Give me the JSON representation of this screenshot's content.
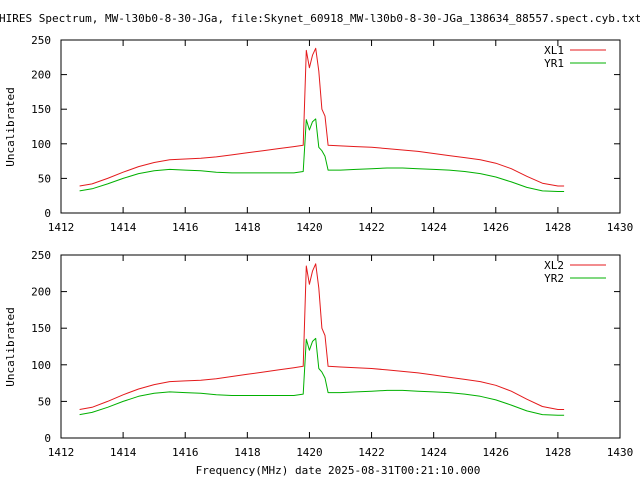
{
  "header": {
    "title": "HIRES Spectrum, MW-l30b0-8-30-JGa, file:Skynet_60918_MW-l30b0-8-30-JGa_138634_88557.spect.cyb.txt"
  },
  "footer": {
    "xlabel": "Frequency(MHz) date 2025-08-31T00:21:10.000"
  },
  "colors": {
    "red": "#e41a1c",
    "green": "#00b000",
    "axis": "#000000",
    "background": "#ffffff"
  },
  "chart_data": [
    {
      "type": "line",
      "title": "HIRES Spectrum, MW-l30b0-8-30-JGa, file:Skynet_60918_MW-l30b0-8-30-JGa_138634_88557.spect.cyb.txt",
      "ylabel": "Uncalibrated",
      "xlim": [
        1412,
        1430
      ],
      "ylim": [
        0,
        250
      ],
      "xticks": [
        "1412",
        "1414",
        "1416",
        "1418",
        "1420",
        "1422",
        "1424",
        "1426",
        "1428",
        "1430"
      ],
      "yticks": [
        "0",
        "50",
        "100",
        "150",
        "200",
        "250"
      ],
      "legend_position": "top-right",
      "grid": false,
      "series": [
        {
          "name": "XL1",
          "color": "#e41a1c",
          "x": [
            1412.6,
            1413.0,
            1413.5,
            1414.0,
            1414.5,
            1415.0,
            1415.5,
            1416.0,
            1416.5,
            1417.0,
            1417.5,
            1418.0,
            1418.5,
            1419.0,
            1419.5,
            1419.8,
            1419.9,
            1420.0,
            1420.1,
            1420.2,
            1420.3,
            1420.4,
            1420.5,
            1420.6,
            1421.0,
            1421.5,
            1422.0,
            1422.5,
            1423.0,
            1423.5,
            1424.0,
            1424.5,
            1425.0,
            1425.5,
            1426.0,
            1426.5,
            1427.0,
            1427.5,
            1428.0,
            1428.2
          ],
          "values": [
            39,
            42,
            50,
            59,
            67,
            73,
            77,
            78,
            79,
            81,
            84,
            87,
            90,
            93,
            96,
            98,
            235,
            210,
            228,
            238,
            205,
            150,
            140,
            98,
            97,
            96,
            95,
            93,
            91,
            89,
            86,
            83,
            80,
            77,
            72,
            64,
            53,
            43,
            39,
            39
          ]
        },
        {
          "name": "YR1",
          "color": "#00b000",
          "x": [
            1412.6,
            1413.0,
            1413.5,
            1414.0,
            1414.5,
            1415.0,
            1415.5,
            1416.0,
            1416.5,
            1417.0,
            1417.5,
            1418.0,
            1418.5,
            1419.0,
            1419.5,
            1419.8,
            1419.9,
            1420.0,
            1420.1,
            1420.2,
            1420.3,
            1420.4,
            1420.5,
            1420.6,
            1421.0,
            1421.5,
            1422.0,
            1422.5,
            1423.0,
            1423.5,
            1424.0,
            1424.5,
            1425.0,
            1425.5,
            1426.0,
            1426.5,
            1427.0,
            1427.5,
            1428.0,
            1428.2
          ],
          "values": [
            32,
            35,
            42,
            50,
            57,
            61,
            63,
            62,
            61,
            59,
            58,
            58,
            58,
            58,
            58,
            60,
            135,
            120,
            132,
            136,
            95,
            90,
            82,
            62,
            62,
            63,
            64,
            65,
            65,
            64,
            63,
            62,
            60,
            57,
            52,
            45,
            37,
            32,
            31,
            31
          ]
        }
      ]
    },
    {
      "type": "line",
      "xlabel": "Frequency(MHz) date 2025-08-31T00:21:10.000",
      "ylabel": "Uncalibrated",
      "xlim": [
        1412,
        1430
      ],
      "ylim": [
        0,
        250
      ],
      "xticks": [
        "1412",
        "1414",
        "1416",
        "1418",
        "1420",
        "1422",
        "1424",
        "1426",
        "1428",
        "1430"
      ],
      "yticks": [
        "0",
        "50",
        "100",
        "150",
        "200",
        "250"
      ],
      "legend_position": "top-right",
      "grid": false,
      "series": [
        {
          "name": "XL2",
          "color": "#e41a1c",
          "x": [
            1412.6,
            1413.0,
            1413.5,
            1414.0,
            1414.5,
            1415.0,
            1415.5,
            1416.0,
            1416.5,
            1417.0,
            1417.5,
            1418.0,
            1418.5,
            1419.0,
            1419.5,
            1419.8,
            1419.9,
            1420.0,
            1420.1,
            1420.2,
            1420.3,
            1420.4,
            1420.5,
            1420.6,
            1421.0,
            1421.5,
            1422.0,
            1422.5,
            1423.0,
            1423.5,
            1424.0,
            1424.5,
            1425.0,
            1425.5,
            1426.0,
            1426.5,
            1427.0,
            1427.5,
            1428.0,
            1428.2
          ],
          "values": [
            39,
            42,
            50,
            59,
            67,
            73,
            77,
            78,
            79,
            81,
            84,
            87,
            90,
            93,
            96,
            98,
            235,
            210,
            228,
            238,
            205,
            150,
            140,
            98,
            97,
            96,
            95,
            93,
            91,
            89,
            86,
            83,
            80,
            77,
            72,
            64,
            53,
            43,
            39,
            39
          ]
        },
        {
          "name": "YR2",
          "color": "#00b000",
          "x": [
            1412.6,
            1413.0,
            1413.5,
            1414.0,
            1414.5,
            1415.0,
            1415.5,
            1416.0,
            1416.5,
            1417.0,
            1417.5,
            1418.0,
            1418.5,
            1419.0,
            1419.5,
            1419.8,
            1419.9,
            1420.0,
            1420.1,
            1420.2,
            1420.3,
            1420.4,
            1420.5,
            1420.6,
            1421.0,
            1421.5,
            1422.0,
            1422.5,
            1423.0,
            1423.5,
            1424.0,
            1424.5,
            1425.0,
            1425.5,
            1426.0,
            1426.5,
            1427.0,
            1427.5,
            1428.0,
            1428.2
          ],
          "values": [
            32,
            35,
            42,
            50,
            57,
            61,
            63,
            62,
            61,
            59,
            58,
            58,
            58,
            58,
            58,
            60,
            135,
            120,
            132,
            136,
            95,
            90,
            82,
            62,
            62,
            63,
            64,
            65,
            65,
            64,
            63,
            62,
            60,
            57,
            52,
            45,
            37,
            32,
            31,
            31
          ]
        }
      ]
    }
  ]
}
